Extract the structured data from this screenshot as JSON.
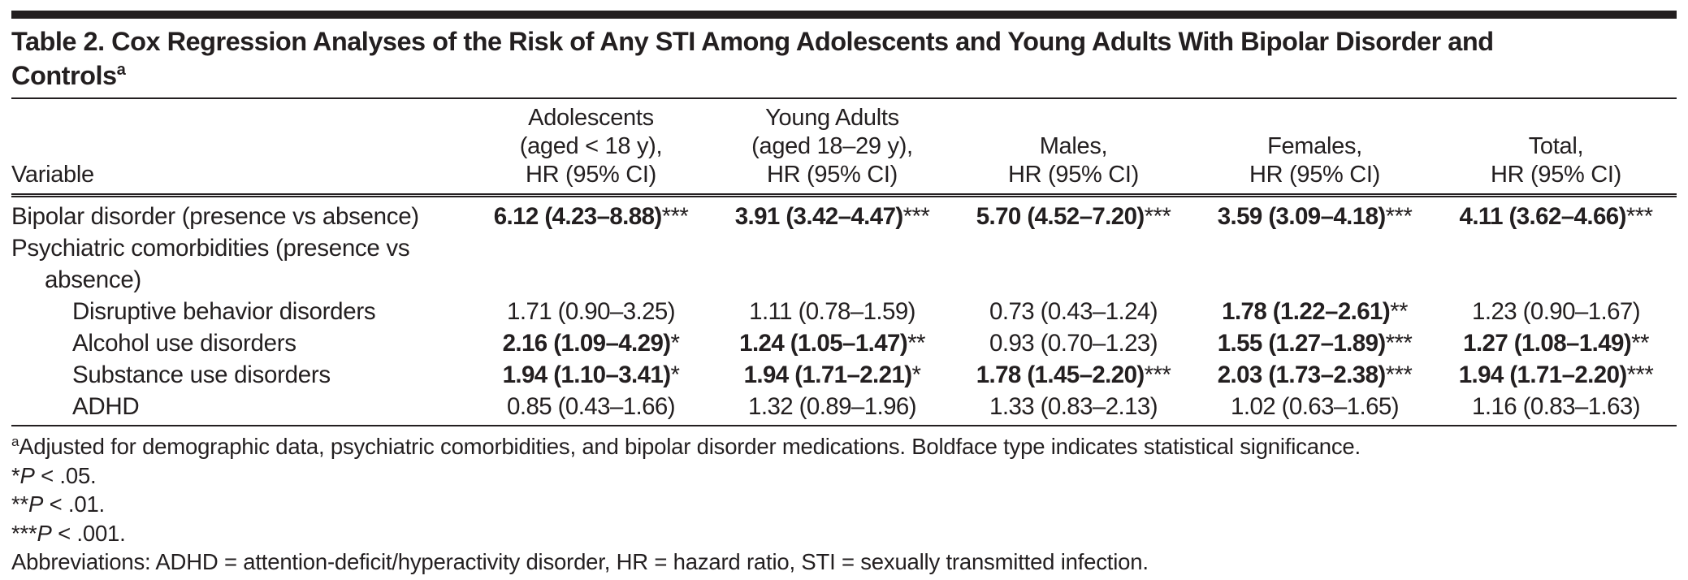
{
  "colors": {
    "text": "#231f20",
    "rule": "#231f20",
    "background": "#ffffff"
  },
  "title": {
    "lines": [
      "Table 2. Cox Regression Analyses of the Risk of Any STI Among Adolescents and Young Adults With Bipolar Disorder and",
      "Controls"
    ],
    "superscript": "a"
  },
  "table": {
    "columns": [
      {
        "key": "variable",
        "label_lines": [
          "Variable"
        ]
      },
      {
        "key": "adolescents",
        "label_lines": [
          "Adolescents",
          "(aged < 18 y),",
          "HR (95% CI)"
        ]
      },
      {
        "key": "young-adults",
        "label_lines": [
          "Young Adults",
          "(aged 18–29 y),",
          "HR (95% CI)"
        ]
      },
      {
        "key": "males",
        "label_lines": [
          "Males,",
          "HR (95% CI)"
        ]
      },
      {
        "key": "females",
        "label_lines": [
          "Females,",
          "HR (95% CI)"
        ]
      },
      {
        "key": "total",
        "label_lines": [
          "Total,",
          "HR (95% CI)"
        ]
      }
    ],
    "rows": [
      {
        "variable_lines": [
          "Bipolar disorder (presence vs absence)"
        ],
        "indent": 0,
        "values": [
          {
            "hr": "6.12 (4.23–8.88)",
            "stars": "***",
            "bold": true
          },
          {
            "hr": "3.91 (3.42–4.47)",
            "stars": "***",
            "bold": true
          },
          {
            "hr": "5.70 (4.52–7.20)",
            "stars": "***",
            "bold": true
          },
          {
            "hr": "3.59 (3.09–4.18)",
            "stars": "***",
            "bold": true
          },
          {
            "hr": "4.11 (3.62–4.66)",
            "stars": "***",
            "bold": true
          }
        ]
      },
      {
        "variable_lines": [
          "Psychiatric comorbidities (presence vs",
          "absence)"
        ],
        "indent": 0,
        "values": []
      },
      {
        "variable_lines": [
          "Disruptive behavior disorders"
        ],
        "indent": 2,
        "values": [
          {
            "hr": "1.71 (0.90–3.25)",
            "stars": "",
            "bold": false
          },
          {
            "hr": "1.11 (0.78–1.59)",
            "stars": "",
            "bold": false
          },
          {
            "hr": "0.73 (0.43–1.24)",
            "stars": "",
            "bold": false
          },
          {
            "hr": "1.78 (1.22–2.61)",
            "stars": "**",
            "bold": true
          },
          {
            "hr": "1.23 (0.90–1.67)",
            "stars": "",
            "bold": false
          }
        ]
      },
      {
        "variable_lines": [
          "Alcohol use disorders"
        ],
        "indent": 2,
        "values": [
          {
            "hr": "2.16 (1.09–4.29)",
            "stars": "*",
            "bold": true
          },
          {
            "hr": "1.24 (1.05–1.47)",
            "stars": "**",
            "bold": true
          },
          {
            "hr": "0.93 (0.70–1.23)",
            "stars": "",
            "bold": false
          },
          {
            "hr": "1.55 (1.27–1.89)",
            "stars": "***",
            "bold": true
          },
          {
            "hr": "1.27 (1.08–1.49)",
            "stars": "**",
            "bold": true
          }
        ]
      },
      {
        "variable_lines": [
          "Substance use disorders"
        ],
        "indent": 2,
        "values": [
          {
            "hr": "1.94 (1.10–3.41)",
            "stars": "*",
            "bold": true
          },
          {
            "hr": "1.94 (1.71–2.21)",
            "stars": "*",
            "bold": true
          },
          {
            "hr": "1.78 (1.45–2.20)",
            "stars": "***",
            "bold": true
          },
          {
            "hr": "2.03 (1.73–2.38)",
            "stars": "***",
            "bold": true
          },
          {
            "hr": "1.94 (1.71–2.20)",
            "stars": "***",
            "bold": true
          }
        ]
      },
      {
        "variable_lines": [
          "ADHD"
        ],
        "indent": 2,
        "values": [
          {
            "hr": "0.85 (0.43–1.66)",
            "stars": "",
            "bold": false
          },
          {
            "hr": "1.32 (0.89–1.96)",
            "stars": "",
            "bold": false
          },
          {
            "hr": "1.33 (0.83–2.13)",
            "stars": "",
            "bold": false
          },
          {
            "hr": "1.02 (0.63–1.65)",
            "stars": "",
            "bold": false
          },
          {
            "hr": "1.16 (0.83–1.63)",
            "stars": "",
            "bold": false
          }
        ]
      }
    ]
  },
  "footnotes": [
    {
      "segments": [
        {
          "text": "a",
          "sup": true
        },
        {
          "text": "Adjusted for demographic data, psychiatric comorbidities, and bipolar disorder medications. Boldface type indicates statistical significance."
        }
      ]
    },
    {
      "segments": [
        {
          "text": "*"
        },
        {
          "text": "P",
          "italic": true
        },
        {
          "text": " < .05."
        }
      ]
    },
    {
      "segments": [
        {
          "text": "**"
        },
        {
          "text": "P",
          "italic": true
        },
        {
          "text": " < .01."
        }
      ]
    },
    {
      "segments": [
        {
          "text": "***"
        },
        {
          "text": "P",
          "italic": true
        },
        {
          "text": " < .001."
        }
      ]
    },
    {
      "segments": [
        {
          "text": "Abbreviations: ADHD = attention-deficit/hyperactivity disorder, HR = hazard ratio, STI = sexually transmitted infection."
        }
      ]
    }
  ]
}
